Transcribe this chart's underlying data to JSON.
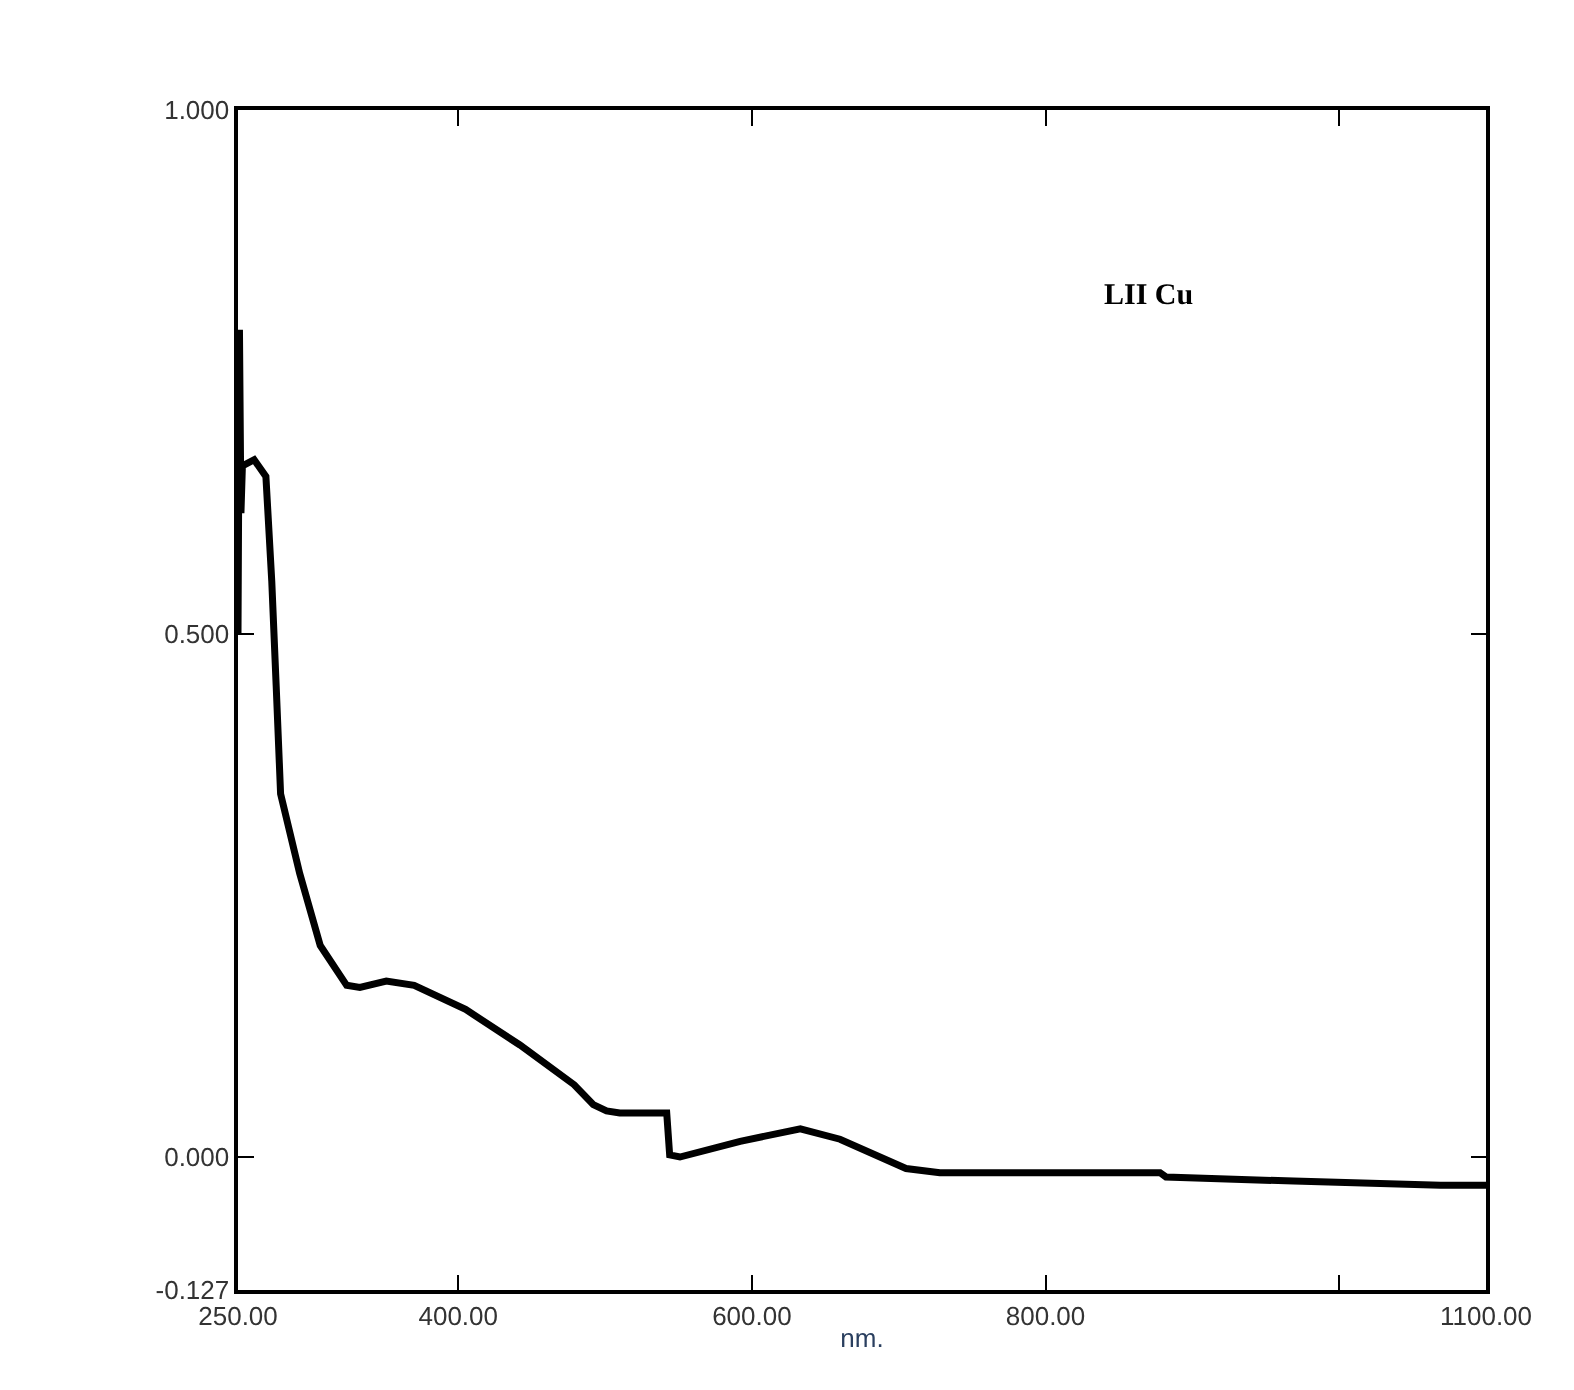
{
  "chart_data": {
    "type": "line",
    "xlabel": "nm.",
    "annotations": [
      "LII Cu"
    ],
    "xlim": [
      250,
      1100
    ],
    "ylim": [
      -0.127,
      1.0
    ],
    "xticks": [
      {
        "value": 250,
        "label": "250.00"
      },
      {
        "value": 400,
        "label": "400.00"
      },
      {
        "value": 600,
        "label": "600.00"
      },
      {
        "value": 800,
        "label": "800.00"
      },
      {
        "value": 1000,
        "label": null
      },
      {
        "value": 1100,
        "label": "1100.00"
      }
    ],
    "yticks": [
      {
        "value": -0.127,
        "label": "-0.127"
      },
      {
        "value": 0,
        "label": "0.000"
      },
      {
        "value": 0.5,
        "label": "0.500"
      },
      {
        "value": 1.0,
        "label": "1.000"
      }
    ],
    "marker": "none",
    "line_style": "solid",
    "series": [
      {
        "color": "#000000",
        "x": [
          250,
          251,
          252,
          253,
          261,
          269,
          273,
          276,
          279,
          292,
          306,
          324,
          333,
          351,
          370,
          405,
          442,
          479,
          492,
          501,
          510,
          542,
          544,
          551,
          592,
          633,
          660,
          705,
          728,
          878,
          882,
          969,
          1069,
          1100
        ],
        "values": [
          0.5,
          0.79,
          0.615,
          0.66,
          0.666,
          0.65,
          0.55,
          0.45,
          0.347,
          0.271,
          0.202,
          0.164,
          0.162,
          0.168,
          0.164,
          0.141,
          0.107,
          0.069,
          0.05,
          0.044,
          0.042,
          0.042,
          0.002,
          0.0,
          0.015,
          0.027,
          0.017,
          -0.011,
          -0.015,
          -0.015,
          -0.019,
          -0.023,
          -0.027,
          -0.027
        ]
      }
    ]
  }
}
